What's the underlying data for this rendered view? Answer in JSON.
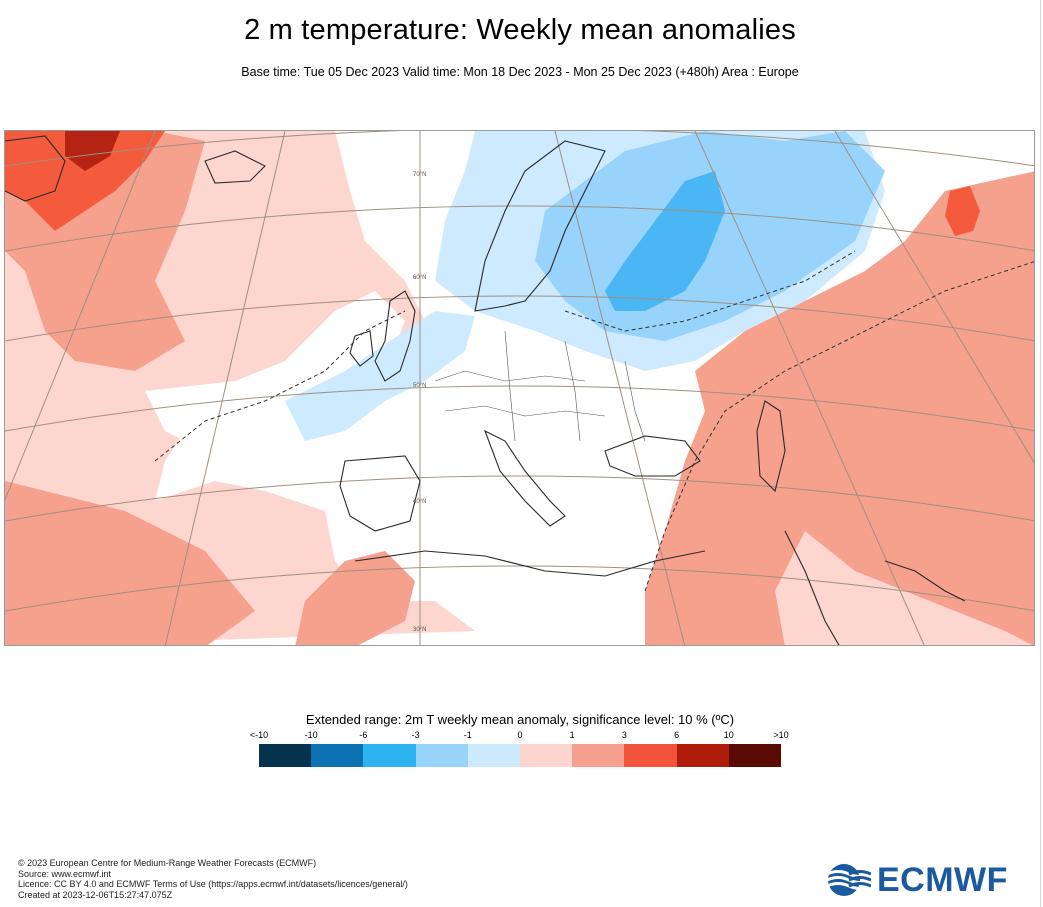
{
  "header": {
    "title": "2 m temperature: Weekly mean anomalies",
    "subtitle": "Base time: Tue 05 Dec 2023 Valid time: Mon 18 Dec 2023 - Mon 25 Dec 2023 (+480h) Area : Europe"
  },
  "map": {
    "lat_labels": [
      "70°N",
      "60°N",
      "50°N",
      "40°N",
      "30°N"
    ],
    "colors": {
      "m1_0": "#cdeafe",
      "m3_1": "#97d3fb",
      "m6_3": "#4ab6f4",
      "p0_1": "#fed6d0",
      "p1_3": "#f6a08e",
      "p3_6": "#f45a3c",
      "p6_10": "#b52412",
      "coast": "#2a2a2a",
      "grid": "#a09080"
    }
  },
  "legend": {
    "title": "Extended range: 2m T weekly mean anomaly, significance level: 10 % (ºC)",
    "ticks": [
      "<-10",
      "-10",
      "-6",
      "-3",
      "-1",
      "0",
      "1",
      "3",
      "6",
      "10",
      ">10"
    ],
    "colors": [
      "#06344f",
      "#0b71b1",
      "#2db3f0",
      "#99d3f9",
      "#cdeafc",
      "#fdd5cf",
      "#f5a08f",
      "#f3533a",
      "#ae1d0c",
      "#580a03"
    ]
  },
  "footer": {
    "lines": [
      "© 2023 European Centre for Medium-Range Weather Forecasts (ECMWF)",
      "Source: www.ecmwf.int",
      "Licence: CC BY 4.0 and ECMWF Terms of Use (https://apps.ecmwf.int/datasets/licences/general/)",
      "Created at 2023-12-06T15:27:47.075Z"
    ]
  },
  "logo": {
    "text": "ECMWF"
  }
}
